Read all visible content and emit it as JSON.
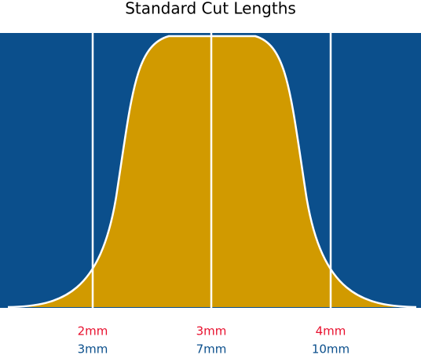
{
  "title": "Standard Cut Lengths",
  "columns": [
    {
      "top_label": "2mm",
      "bottom_label": "3mm"
    },
    {
      "top_label": "3mm",
      "bottom_label": "7mm"
    },
    {
      "top_label": "4mm",
      "bottom_label": "10mm"
    }
  ]
}
